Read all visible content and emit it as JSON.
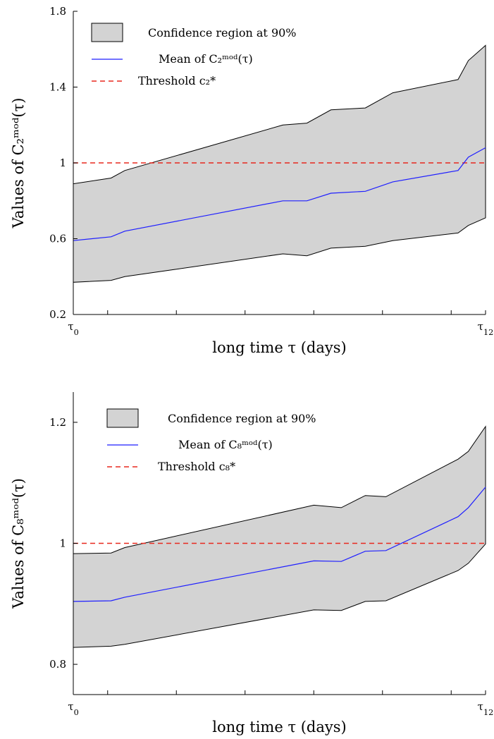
{
  "chart_data": [
    {
      "type": "area",
      "xlabel": "long time τ (days)",
      "ylabel": "Values of C₂ᵐᵒᵈ(τ)",
      "xtick_labels": {
        "start": "τ0",
        "end": "τ12"
      },
      "xlim": [
        0,
        12
      ],
      "ylim": [
        0.2,
        1.8
      ],
      "yticks": [
        0.2,
        0.6,
        1,
        1.4,
        1.8
      ],
      "ytick_labels": [
        "0.2",
        "0.6",
        "1",
        "1.4",
        "1.8"
      ],
      "legend": {
        "position": "top-left",
        "entries": [
          {
            "kind": "patch",
            "label": "Confidence region at 90%"
          },
          {
            "kind": "line",
            "label": "Mean of C₂ᵐᵒᵈ(τ)"
          },
          {
            "kind": "dashed",
            "label": "Threshold c₂*"
          }
        ]
      },
      "threshold": 1,
      "series": [
        {
          "name": "Confidence region at 90%",
          "x": [
            0,
            1.1,
            1.5,
            6.1,
            6.8,
            7.5,
            8.5,
            9.3,
            11.2,
            11.5,
            12
          ],
          "upper": [
            0.89,
            0.92,
            0.96,
            1.2,
            1.21,
            1.28,
            1.29,
            1.37,
            1.44,
            1.54,
            1.62
          ],
          "lower": [
            0.37,
            0.38,
            0.4,
            0.52,
            0.51,
            0.55,
            0.56,
            0.59,
            0.63,
            0.67,
            0.71
          ]
        },
        {
          "name": "Mean of C₂ᵐᵒᵈ(τ)",
          "x": [
            0,
            1.1,
            1.5,
            6.1,
            6.8,
            7.5,
            8.5,
            9.3,
            11.2,
            11.5,
            12
          ],
          "values": [
            0.59,
            0.61,
            0.64,
            0.8,
            0.8,
            0.84,
            0.85,
            0.9,
            0.96,
            1.03,
            1.08
          ]
        },
        {
          "name": "Threshold c₂*",
          "x": [
            0,
            12
          ],
          "values": [
            1,
            1
          ]
        }
      ]
    },
    {
      "type": "area",
      "xlabel": "long time τ (days)",
      "ylabel": "Values of C₈ᵐᵒᵈ(τ)",
      "xtick_labels": {
        "start": "τ0",
        "end": "τ12"
      },
      "xlim": [
        0,
        12
      ],
      "ylim": [
        0.75,
        1.25
      ],
      "yticks": [
        0.8,
        1,
        1.2
      ],
      "ytick_labels": [
        "0.8",
        "1",
        "1.2"
      ],
      "legend": {
        "position": "top-left",
        "entries": [
          {
            "kind": "patch",
            "label": "Confidence region at 90%"
          },
          {
            "kind": "line",
            "label": "Mean of C₈ᵐᵒᵈ(τ)"
          },
          {
            "kind": "dashed",
            "label": "Threshold c₈*"
          }
        ]
      },
      "threshold": 1,
      "series": [
        {
          "name": "Confidence region at 90%",
          "x": [
            0,
            1.1,
            1.5,
            7.0,
            7.8,
            8.5,
            9.1,
            11.2,
            11.5,
            12
          ],
          "upper": [
            0.983,
            0.984,
            0.993,
            1.063,
            1.059,
            1.079,
            1.077,
            1.139,
            1.152,
            1.193
          ],
          "lower": [
            0.828,
            0.83,
            0.833,
            0.89,
            0.889,
            0.904,
            0.905,
            0.955,
            0.967,
            0.999
          ]
        },
        {
          "name": "Mean of C₈ᵐᵒᵈ(τ)",
          "x": [
            0,
            1.1,
            1.5,
            7.0,
            7.8,
            8.5,
            9.1,
            11.2,
            11.5,
            12
          ],
          "values": [
            0.904,
            0.905,
            0.911,
            0.971,
            0.97,
            0.987,
            0.988,
            1.044,
            1.059,
            1.093
          ]
        },
        {
          "name": "Threshold c₈*",
          "x": [
            0,
            12
          ],
          "values": [
            1,
            1
          ]
        }
      ]
    }
  ],
  "colors": {
    "band_fill": "#d3d3d3",
    "band_edge": "#000000",
    "mean_line": "#1f1fff",
    "threshold_line": "#e8281e"
  }
}
